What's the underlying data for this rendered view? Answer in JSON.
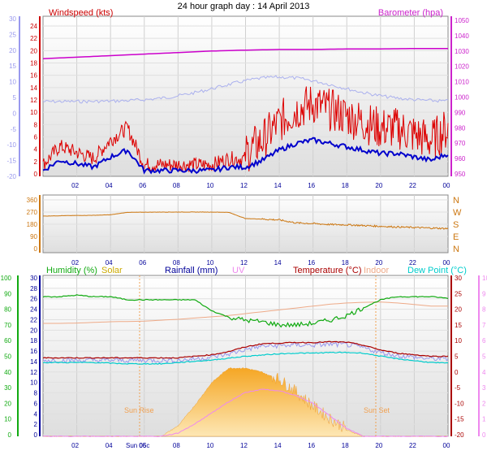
{
  "title": "24 hour graph day : 14 April 2013",
  "colors": {
    "wind": "#dd0000",
    "gust_line": "#0000cc",
    "barometer": "#cc00cc",
    "baro_band": "#aab0ee",
    "direction": "#cc7711",
    "humidity": "#11aa11",
    "solar": "#ddbb00",
    "rainfall": "#000099",
    "uv": "#ee88ee",
    "temperature": "#aa0000",
    "indoor": "#eeaa88",
    "dewpoint": "#00cccc",
    "left_axis": "#9999ee",
    "right_axis_mag": "#cc22cc",
    "frame": "#888888",
    "plot_bg": "#f2f2f2"
  },
  "x_ticks": [
    "02",
    "04",
    "06",
    "08",
    "10",
    "12",
    "14",
    "16",
    "18",
    "20",
    "22",
    "00"
  ],
  "panel1": {
    "left_label": "Windspeed (kts)",
    "right_label": "Barometer (hpa)",
    "left_axis_blue": [
      "30",
      "25",
      "20",
      "15",
      "10",
      "5",
      "0",
      "-5",
      "-10",
      "-15",
      "-20"
    ],
    "left_axis_red": [
      "24",
      "22",
      "20",
      "18",
      "16",
      "14",
      "12",
      "10",
      "8",
      "6",
      "4",
      "2",
      "0"
    ],
    "right_axis": [
      "1050",
      "1040",
      "1030",
      "1020",
      "1010",
      "1000",
      "990",
      "980",
      "970",
      "960",
      "950"
    ]
  },
  "panel2": {
    "left_axis": [
      "360",
      "270",
      "180",
      "90",
      "0"
    ],
    "right_axis": [
      "N",
      "W",
      "S",
      "E",
      "N"
    ]
  },
  "panel3": {
    "legend": {
      "humidity": "Humidity (%)",
      "solar": "Solar",
      "rainfall": "Rainfall (mm)",
      "uv": "UV",
      "temperature": "Temperature (°C)",
      "indoor": "Indoor",
      "dewpoint": "Dew Point (°C)"
    },
    "axis_humidity": [
      "100",
      "90",
      "80",
      "70",
      "60",
      "50",
      "40",
      "30",
      "20",
      "10",
      "0"
    ],
    "axis_temp_left": [
      "30",
      "28",
      "26",
      "24",
      "22",
      "20",
      "18",
      "16",
      "14",
      "12",
      "10",
      "8",
      "6",
      "4",
      "2",
      "0"
    ],
    "axis_temp_right": [
      "30",
      "25",
      "20",
      "15",
      "10",
      "5",
      "0",
      "-5",
      "-10",
      "-15",
      "-20"
    ],
    "axis_uv": [
      "10",
      "9",
      "8",
      "7",
      "6",
      "5",
      "4",
      "3",
      "2",
      "1",
      "0"
    ],
    "sunrise_label": "Sun Rise",
    "sunset_label": "Sun Set",
    "sunrise_tick": "Sun Rise",
    "sunset_tick": "Sun Set",
    "x_tick_overlay": "Sun 05c"
  },
  "chart_data": [
    {
      "type": "line",
      "title": "24 hour graph day : 14 April 2013",
      "x": [
        0,
        1,
        2,
        3,
        4,
        5,
        6,
        7,
        8,
        9,
        10,
        11,
        12,
        13,
        14,
        15,
        16,
        17,
        18,
        19,
        20,
        21,
        22,
        23,
        24
      ],
      "series": [
        {
          "name": "Barometer (hpa)",
          "axis": "right",
          "values": [
            1025,
            1025.5,
            1026,
            1026.5,
            1027,
            1027.5,
            1028,
            1028.5,
            1029,
            1029.5,
            1030,
            1030.3,
            1030.6,
            1030.8,
            1031,
            1031,
            1031,
            1031.2,
            1031.3,
            1031.4,
            1031.4,
            1031.5,
            1031.6,
            1031.6,
            1031.6
          ]
        },
        {
          "name": "Windspeed (kts)",
          "axis": "left",
          "values": [
            1,
            4,
            3,
            2,
            5,
            7,
            1,
            1,
            1,
            1,
            1,
            2,
            2,
            4,
            7,
            9,
            10,
            9,
            8,
            7,
            6,
            6,
            5,
            4,
            6
          ]
        }
      ]
    },
    {
      "type": "line",
      "ylim": [
        0,
        360
      ],
      "x": [
        0,
        1,
        2,
        3,
        4,
        5,
        6,
        7,
        8,
        9,
        10,
        11,
        12,
        13,
        14,
        15,
        16,
        17,
        18,
        19,
        20,
        21,
        22,
        23,
        24
      ],
      "values": [
        240,
        243,
        245,
        246,
        250,
        268,
        269,
        270,
        270,
        270,
        270,
        268,
        222,
        218,
        212,
        190,
        185,
        178,
        176,
        170,
        165,
        160,
        156,
        152,
        148
      ]
    },
    {
      "type": "area",
      "x": [
        0,
        1,
        2,
        3,
        4,
        5,
        6,
        7,
        8,
        9,
        10,
        11,
        12,
        13,
        14,
        15,
        16,
        17,
        18,
        19,
        20,
        21,
        22,
        23,
        24
      ],
      "series": [
        {
          "name": "Humidity (%)",
          "values": [
            88,
            88,
            89,
            88,
            88,
            86,
            86,
            86,
            86,
            86,
            79,
            75,
            73,
            72,
            70,
            70,
            71,
            73,
            76,
            81,
            86,
            88,
            88,
            88,
            87
          ]
        },
        {
          "name": "Temperature (°C)",
          "values": [
            4.5,
            4.5,
            4.5,
            4.5,
            4.5,
            4.5,
            4.5,
            4.5,
            4.5,
            5,
            5.5,
            6.5,
            8,
            9,
            9.2,
            9.4,
            9.4,
            9.6,
            9.5,
            8.5,
            7,
            6,
            5.5,
            5,
            5
          ]
        },
        {
          "name": "Dew Point (°C)",
          "values": [
            3,
            3,
            3,
            3,
            2.8,
            2.6,
            2.6,
            2.6,
            3,
            3.4,
            3.8,
            4.4,
            5,
            5.4,
            5.8,
            6,
            6,
            6.2,
            6.2,
            6,
            5,
            4.2,
            3.6,
            3,
            2.8
          ]
        },
        {
          "name": "Indoor",
          "values": [
            15.5,
            15.5,
            15.6,
            15.8,
            16,
            16.1,
            16.2,
            16.5,
            16.8,
            17.2,
            17.6,
            18,
            18.6,
            19.2,
            19.8,
            20.4,
            21,
            21.6,
            22,
            22.2,
            22.3,
            22,
            21.5,
            21,
            21
          ]
        },
        {
          "name": "Solar",
          "values": [
            0,
            0,
            0,
            0,
            0,
            0,
            0,
            0,
            50,
            150,
            260,
            330,
            330,
            310,
            270,
            210,
            140,
            80,
            30,
            0,
            0,
            0,
            0,
            0,
            0
          ]
        },
        {
          "name": "UV",
          "values": [
            0,
            0,
            0,
            0,
            0,
            0,
            0,
            0,
            0.2,
            0.8,
            1.5,
            2.2,
            2.8,
            3,
            2.9,
            2.6,
            2.1,
            1.3,
            0.5,
            0,
            0,
            0,
            0,
            0,
            0
          ]
        }
      ]
    }
  ]
}
